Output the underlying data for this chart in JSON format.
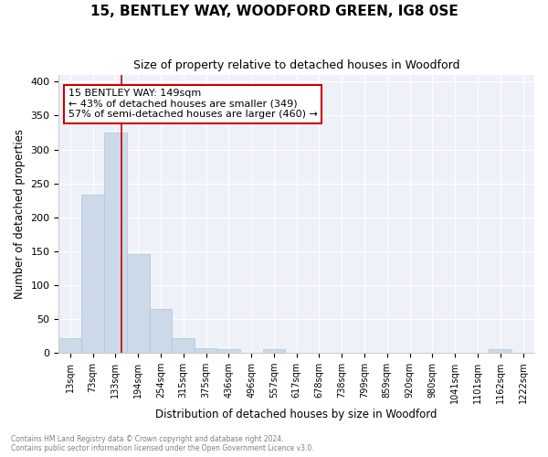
{
  "title": "15, BENTLEY WAY, WOODFORD GREEN, IG8 0SE",
  "subtitle": "Size of property relative to detached houses in Woodford",
  "xlabel": "Distribution of detached houses by size in Woodford",
  "ylabel": "Number of detached properties",
  "bin_labels": [
    "13sqm",
    "73sqm",
    "133sqm",
    "194sqm",
    "254sqm",
    "315sqm",
    "375sqm",
    "436sqm",
    "496sqm",
    "557sqm",
    "617sqm",
    "678sqm",
    "738sqm",
    "799sqm",
    "859sqm",
    "920sqm",
    "980sqm",
    "1041sqm",
    "1101sqm",
    "1162sqm",
    "1222sqm"
  ],
  "bar_heights": [
    22,
    234,
    325,
    146,
    65,
    22,
    7,
    5,
    0,
    5,
    0,
    0,
    0,
    0,
    0,
    0,
    0,
    0,
    0,
    5,
    0
  ],
  "n_bins": 21,
  "property_bin_index": 2,
  "property_size": 149,
  "annotation_title": "15 BENTLEY WAY: 149sqm",
  "annotation_line1": "← 43% of detached houses are smaller (349)",
  "annotation_line2": "57% of semi-detached houses are larger (460) →",
  "bar_color": "#ccd9e8",
  "bar_edge_color": "#aec6d8",
  "line_color": "#cc0000",
  "annotation_box_color": "#ffffff",
  "annotation_box_edge": "#cc0000",
  "background_color": "#eef2f8",
  "ylim": [
    0,
    410
  ],
  "yticks": [
    0,
    50,
    100,
    150,
    200,
    250,
    300,
    350,
    400
  ],
  "footnote1": "Contains HM Land Registry data © Crown copyright and database right 2024.",
  "footnote2": "Contains public sector information licensed under the Open Government Licence v3.0."
}
